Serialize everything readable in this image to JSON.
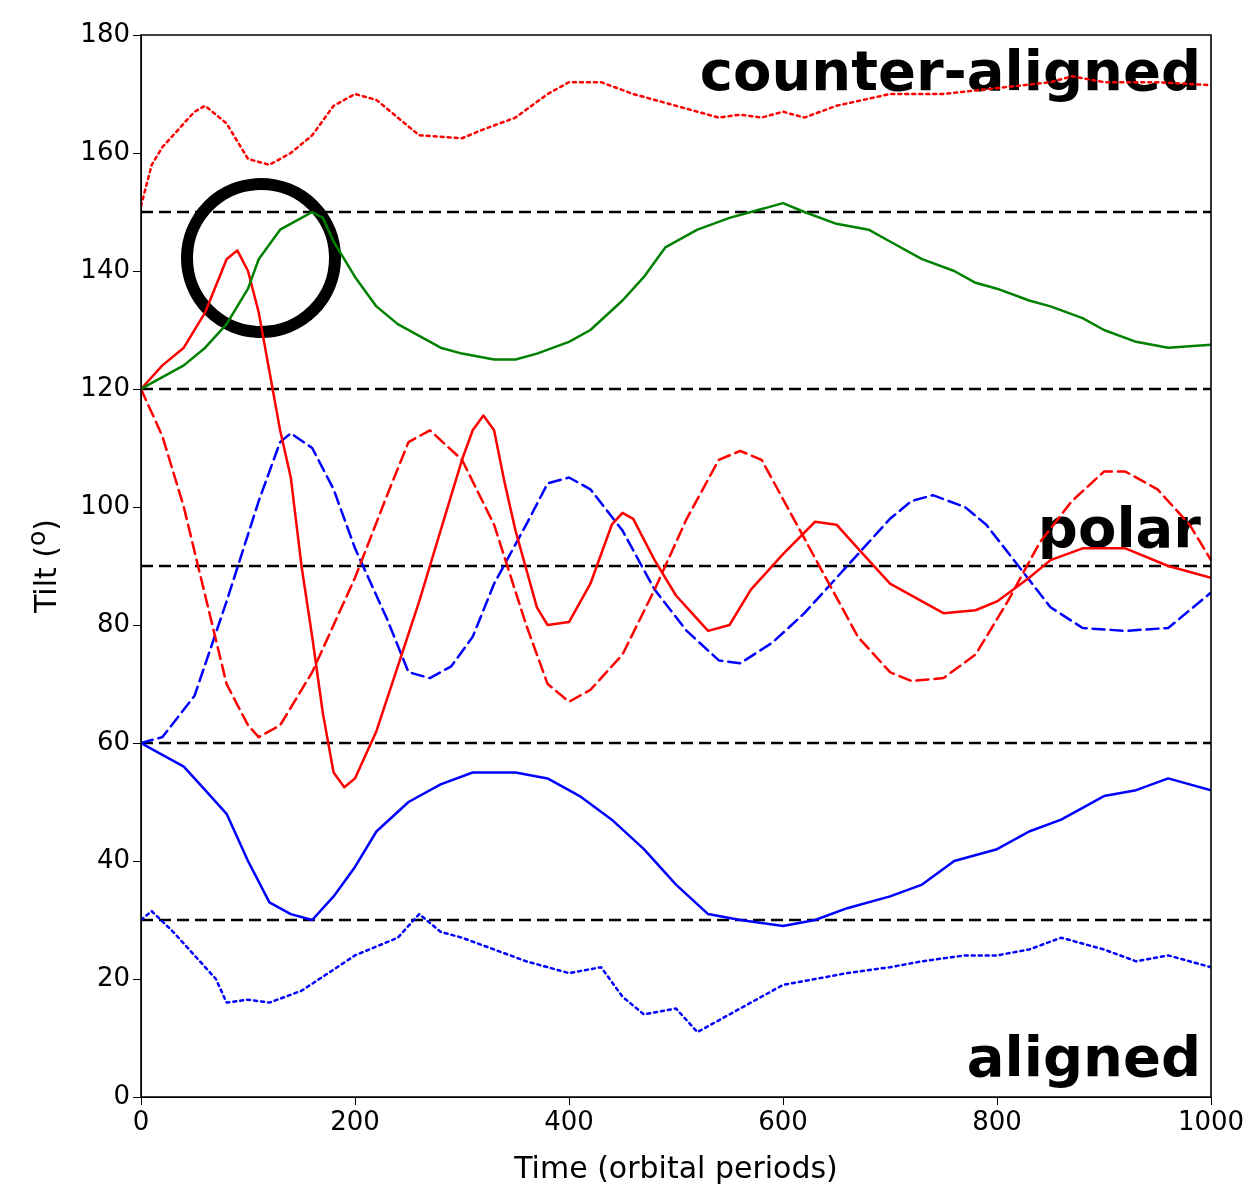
{
  "chart_data": {
    "type": "line",
    "xlabel": "Time (orbital periods)",
    "ylabel": "Tilt ($^{o}$)",
    "xlim": [
      0,
      1000
    ],
    "xticks": [
      0,
      200,
      400,
      600,
      800,
      1000
    ],
    "ylim": [
      0,
      180
    ],
    "yticks": [
      0,
      20,
      40,
      60,
      80,
      100,
      120,
      140,
      160,
      180
    ],
    "grid": false,
    "legend": false,
    "marker": "none",
    "series": [
      {
        "color": "#ff0000",
        "line_style": "dotted",
        "x": [
          0,
          10,
          20,
          40,
          50,
          60,
          80,
          100,
          120,
          140,
          160,
          180,
          200,
          220,
          240,
          260,
          300,
          320,
          350,
          380,
          400,
          430,
          460,
          500,
          520,
          540,
          560,
          580,
          600,
          620,
          650,
          700,
          750,
          800,
          850,
          870,
          900,
          950,
          1000
        ],
        "values": [
          151,
          158,
          161,
          165,
          167,
          168,
          165,
          159,
          158,
          160,
          163,
          168,
          170,
          169,
          166,
          163,
          162.5,
          164,
          166,
          170,
          172,
          172,
          170,
          168,
          167,
          166,
          166.5,
          166,
          167,
          166,
          168,
          170,
          170,
          171,
          172,
          173,
          172,
          172,
          171.5
        ]
      },
      {
        "color": "#008000",
        "line_style": "solid",
        "x": [
          0,
          20,
          40,
          60,
          80,
          100,
          110,
          130,
          150,
          160,
          170,
          180,
          200,
          220,
          240,
          260,
          280,
          300,
          330,
          350,
          370,
          400,
          420,
          450,
          470,
          490,
          520,
          550,
          570,
          600,
          620,
          650,
          680,
          700,
          730,
          760,
          780,
          800,
          830,
          850,
          880,
          900,
          930,
          960,
          1000
        ],
        "values": [
          120,
          122,
          124,
          127,
          131,
          137,
          142,
          147,
          149,
          150,
          149,
          145,
          139,
          134,
          131,
          129,
          127,
          126,
          125,
          125,
          126,
          128,
          130,
          135,
          139,
          144,
          147,
          149,
          150,
          151.5,
          150,
          148,
          147,
          145,
          142,
          140,
          138,
          137,
          135,
          134,
          132,
          130,
          128,
          127,
          127.5
        ]
      },
      {
        "color": "#ff0000",
        "line_style": "solid",
        "x": [
          0,
          20,
          40,
          60,
          80,
          90,
          100,
          110,
          120,
          130,
          140,
          150,
          160,
          170,
          180,
          190,
          200,
          220,
          240,
          260,
          280,
          300,
          310,
          320,
          330,
          340,
          350,
          370,
          380,
          400,
          420,
          440,
          450,
          460,
          480,
          500,
          520,
          530,
          550,
          570,
          600,
          630,
          650,
          670,
          700,
          730,
          750,
          780,
          800,
          830,
          850,
          880,
          920,
          960,
          1000
        ],
        "values": [
          120,
          124,
          127,
          133,
          142,
          143.5,
          140,
          133,
          123,
          113,
          105,
          90,
          78,
          65,
          55,
          52.5,
          54,
          62,
          73,
          84,
          96,
          108,
          113,
          115.5,
          113,
          104,
          96,
          83,
          80,
          80.5,
          87,
          97,
          99,
          98,
          91,
          85,
          81,
          79,
          80,
          86,
          92,
          97.5,
          97,
          93,
          87,
          84,
          82,
          82.5,
          84,
          88,
          91,
          93,
          93,
          90,
          88
        ]
      },
      {
        "color": "#ff0000",
        "line_style": "dashed",
        "x": [
          0,
          20,
          40,
          60,
          80,
          100,
          110,
          130,
          160,
          200,
          230,
          250,
          270,
          300,
          330,
          360,
          380,
          400,
          420,
          450,
          480,
          510,
          540,
          560,
          580,
          610,
          640,
          670,
          700,
          720,
          750,
          780,
          810,
          840,
          870,
          900,
          920,
          950,
          980,
          1000
        ],
        "values": [
          120,
          112,
          100,
          85,
          70,
          63,
          61,
          63,
          72,
          88,
          102,
          111,
          113,
          108,
          97,
          80,
          70,
          67,
          69,
          75,
          86,
          98,
          108,
          109.5,
          108,
          98,
          88,
          78,
          72,
          70.5,
          71,
          75,
          84,
          94,
          101,
          106,
          106,
          103,
          97,
          91
        ]
      },
      {
        "color": "#0000ff",
        "line_style": "dashed",
        "x": [
          0,
          20,
          50,
          80,
          110,
          130,
          140,
          160,
          180,
          200,
          230,
          250,
          270,
          290,
          310,
          330,
          360,
          380,
          400,
          420,
          450,
          480,
          510,
          540,
          560,
          590,
          620,
          650,
          680,
          700,
          720,
          740,
          770,
          790,
          820,
          850,
          880,
          920,
          960,
          1000
        ],
        "values": [
          60,
          61,
          68,
          84,
          101,
          111,
          112.5,
          110,
          103,
          93,
          81,
          72,
          71,
          73,
          78,
          87,
          97,
          104,
          105,
          103,
          96,
          86,
          79,
          74,
          73.5,
          77,
          82,
          88,
          94,
          98,
          101,
          102,
          100,
          97,
          90,
          83,
          79.5,
          79,
          79.5,
          85.5
        ]
      },
      {
        "color": "#0000ff",
        "line_style": "solid",
        "x": [
          0,
          20,
          40,
          60,
          80,
          100,
          120,
          140,
          160,
          180,
          200,
          220,
          250,
          280,
          310,
          350,
          380,
          410,
          440,
          470,
          500,
          530,
          560,
          580,
          600,
          630,
          660,
          700,
          730,
          760,
          800,
          830,
          860,
          900,
          930,
          960,
          1000
        ],
        "values": [
          60,
          58,
          56,
          52,
          48,
          40,
          33,
          31,
          30,
          34,
          39,
          45,
          50,
          53,
          55,
          55,
          54,
          51,
          47,
          42,
          36,
          31,
          30,
          29.5,
          29,
          30,
          32,
          34,
          36,
          40,
          42,
          45,
          47,
          51,
          52,
          54,
          52
        ]
      },
      {
        "color": "#0000ff",
        "line_style": "dotted",
        "x": [
          0,
          10,
          30,
          50,
          70,
          80,
          100,
          120,
          150,
          200,
          240,
          260,
          280,
          300,
          330,
          360,
          400,
          430,
          450,
          470,
          500,
          520,
          540,
          560,
          580,
          600,
          630,
          660,
          700,
          730,
          770,
          800,
          830,
          860,
          900,
          930,
          960,
          980,
          1000
        ],
        "values": [
          30,
          31.5,
          28,
          24,
          20,
          16,
          16.5,
          16,
          18,
          24,
          27,
          31,
          28,
          27,
          25,
          23,
          21,
          22,
          17,
          14,
          15,
          11,
          13,
          15,
          17,
          19,
          20,
          21,
          22,
          23,
          24,
          24,
          25,
          27,
          25,
          23,
          24,
          23,
          22
        ]
      }
    ],
    "ref_lines": [
      {
        "axis": "y",
        "value": 30,
        "color": "#000000",
        "line_style": "dashed"
      },
      {
        "axis": "y",
        "value": 60,
        "color": "#000000",
        "line_style": "dashed"
      },
      {
        "axis": "y",
        "value": 90,
        "color": "#000000",
        "line_style": "dashed"
      },
      {
        "axis": "y",
        "value": 120,
        "color": "#000000",
        "line_style": "dashed"
      },
      {
        "axis": "y",
        "value": 150,
        "color": "#000000",
        "line_style": "dashed"
      }
    ],
    "annotations": [
      "counter-aligned",
      "polar",
      "aligned"
    ]
  }
}
